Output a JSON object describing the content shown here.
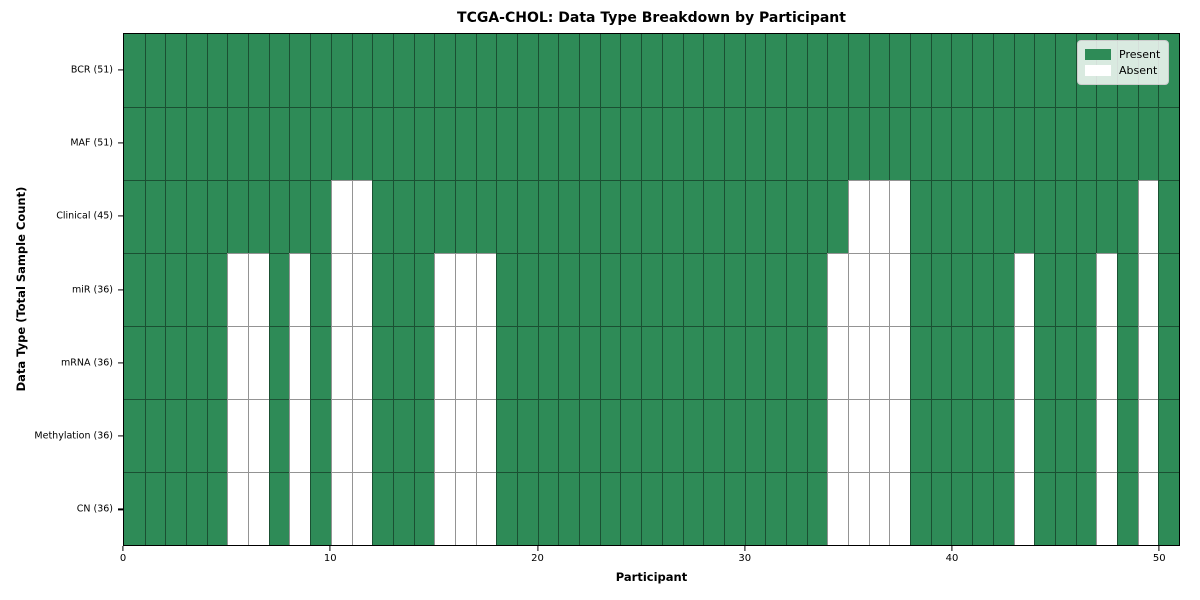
{
  "chart_data": {
    "type": "heatmap",
    "title": "TCGA-CHOL: Data Type Breakdown by Participant",
    "xlabel": "Participant",
    "ylabel": "Data Type (Total Sample Count)",
    "x_range": [
      0,
      51
    ],
    "n_participants": 51,
    "x_ticks": [
      0,
      10,
      20,
      30,
      40,
      50
    ],
    "grid": true,
    "legend_position": "upper right",
    "legend": [
      {
        "label": "Present",
        "color": "#2e8b57"
      },
      {
        "label": "Absent",
        "color": "#ffffff"
      }
    ],
    "colors": {
      "present": "#2e8b57",
      "absent": "#ffffff"
    },
    "rows": [
      {
        "label": "BCR (51)",
        "present_count": 51,
        "absent": []
      },
      {
        "label": "MAF (51)",
        "present_count": 51,
        "absent": []
      },
      {
        "label": "Clinical (45)",
        "present_count": 45,
        "absent": [
          10,
          11,
          35,
          36,
          37,
          49
        ]
      },
      {
        "label": "miR (36)",
        "present_count": 36,
        "absent": [
          5,
          6,
          8,
          10,
          11,
          15,
          16,
          17,
          34,
          35,
          36,
          37,
          43,
          47,
          49
        ]
      },
      {
        "label": "mRNA (36)",
        "present_count": 36,
        "absent": [
          5,
          6,
          8,
          10,
          11,
          15,
          16,
          17,
          34,
          35,
          36,
          37,
          43,
          47,
          49
        ]
      },
      {
        "label": "Methylation (36)",
        "present_count": 36,
        "absent": [
          5,
          6,
          8,
          10,
          11,
          15,
          16,
          17,
          34,
          35,
          36,
          37,
          43,
          47,
          49
        ]
      },
      {
        "label": "CN (36)",
        "present_count": 36,
        "absent": [
          5,
          6,
          8,
          10,
          11,
          15,
          16,
          17,
          34,
          35,
          36,
          37,
          43,
          47,
          49
        ]
      }
    ]
  }
}
